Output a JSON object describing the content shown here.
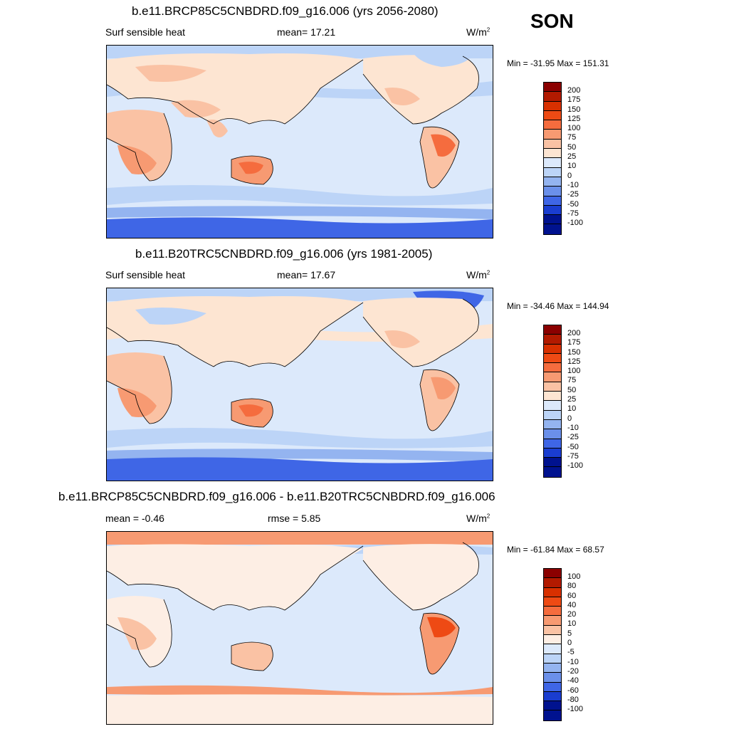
{
  "season": "SON",
  "panels": [
    {
      "title": "b.e11.BRCP85C5CNBDRD.f09_g16.006 (yrs 2056-2080)",
      "left_label": "Surf sensible heat",
      "mid_label": "mean=  17.21",
      "units": "W/m",
      "units_sup": "2",
      "minmax": "Min = -31.95 Max = 151.31",
      "levels": [
        "200",
        "175",
        "150",
        "125",
        "100",
        "75",
        "50",
        "25",
        "10",
        "0",
        "-10",
        "-25",
        "-50",
        "-75",
        "-100"
      ],
      "colors": [
        "#8b0000",
        "#b21a00",
        "#d83000",
        "#ee4a14",
        "#f56c3e",
        "#f79a72",
        "#fac2a4",
        "#fde5d2",
        "#dce9fb",
        "#bcd4f7",
        "#94b4f0",
        "#6b90ea",
        "#3f66e6",
        "#1a3dd0",
        "#00128f"
      ]
    },
    {
      "title": "b.e11.B20TRC5CNBDRD.f09_g16.006 (yrs 1981-2005)",
      "left_label": "Surf sensible heat",
      "mid_label": "mean=  17.67",
      "units": "W/m",
      "units_sup": "2",
      "minmax": "Min = -34.46 Max = 144.94",
      "levels": [
        "200",
        "175",
        "150",
        "125",
        "100",
        "75",
        "50",
        "25",
        "10",
        "0",
        "-10",
        "-25",
        "-50",
        "-75",
        "-100"
      ],
      "colors": [
        "#8b0000",
        "#b21a00",
        "#d83000",
        "#ee4a14",
        "#f56c3e",
        "#f79a72",
        "#fac2a4",
        "#fde5d2",
        "#dce9fb",
        "#bcd4f7",
        "#94b4f0",
        "#6b90ea",
        "#3f66e6",
        "#1a3dd0",
        "#00128f"
      ]
    },
    {
      "title": "b.e11.BRCP85C5CNBDRD.f09_g16.006 - b.e11.B20TRC5CNBDRD.f09_g16.006",
      "left_label": "mean =  -0.46",
      "mid_label": "rmse =   5.85",
      "units": "W/m",
      "units_sup": "2",
      "minmax": "Min = -61.84 Max =  68.57",
      "levels": [
        "100",
        "80",
        "60",
        "40",
        "20",
        "10",
        "5",
        "0",
        "-5",
        "-10",
        "-20",
        "-40",
        "-60",
        "-80",
        "-100"
      ],
      "colors": [
        "#8b0000",
        "#b21a00",
        "#d83000",
        "#ee4a14",
        "#f56c3e",
        "#f79a72",
        "#fac2a4",
        "#fdeee4",
        "#dce9fb",
        "#bcd4f7",
        "#94b4f0",
        "#6b90ea",
        "#3f66e6",
        "#1a3dd0",
        "#00128f"
      ]
    }
  ]
}
